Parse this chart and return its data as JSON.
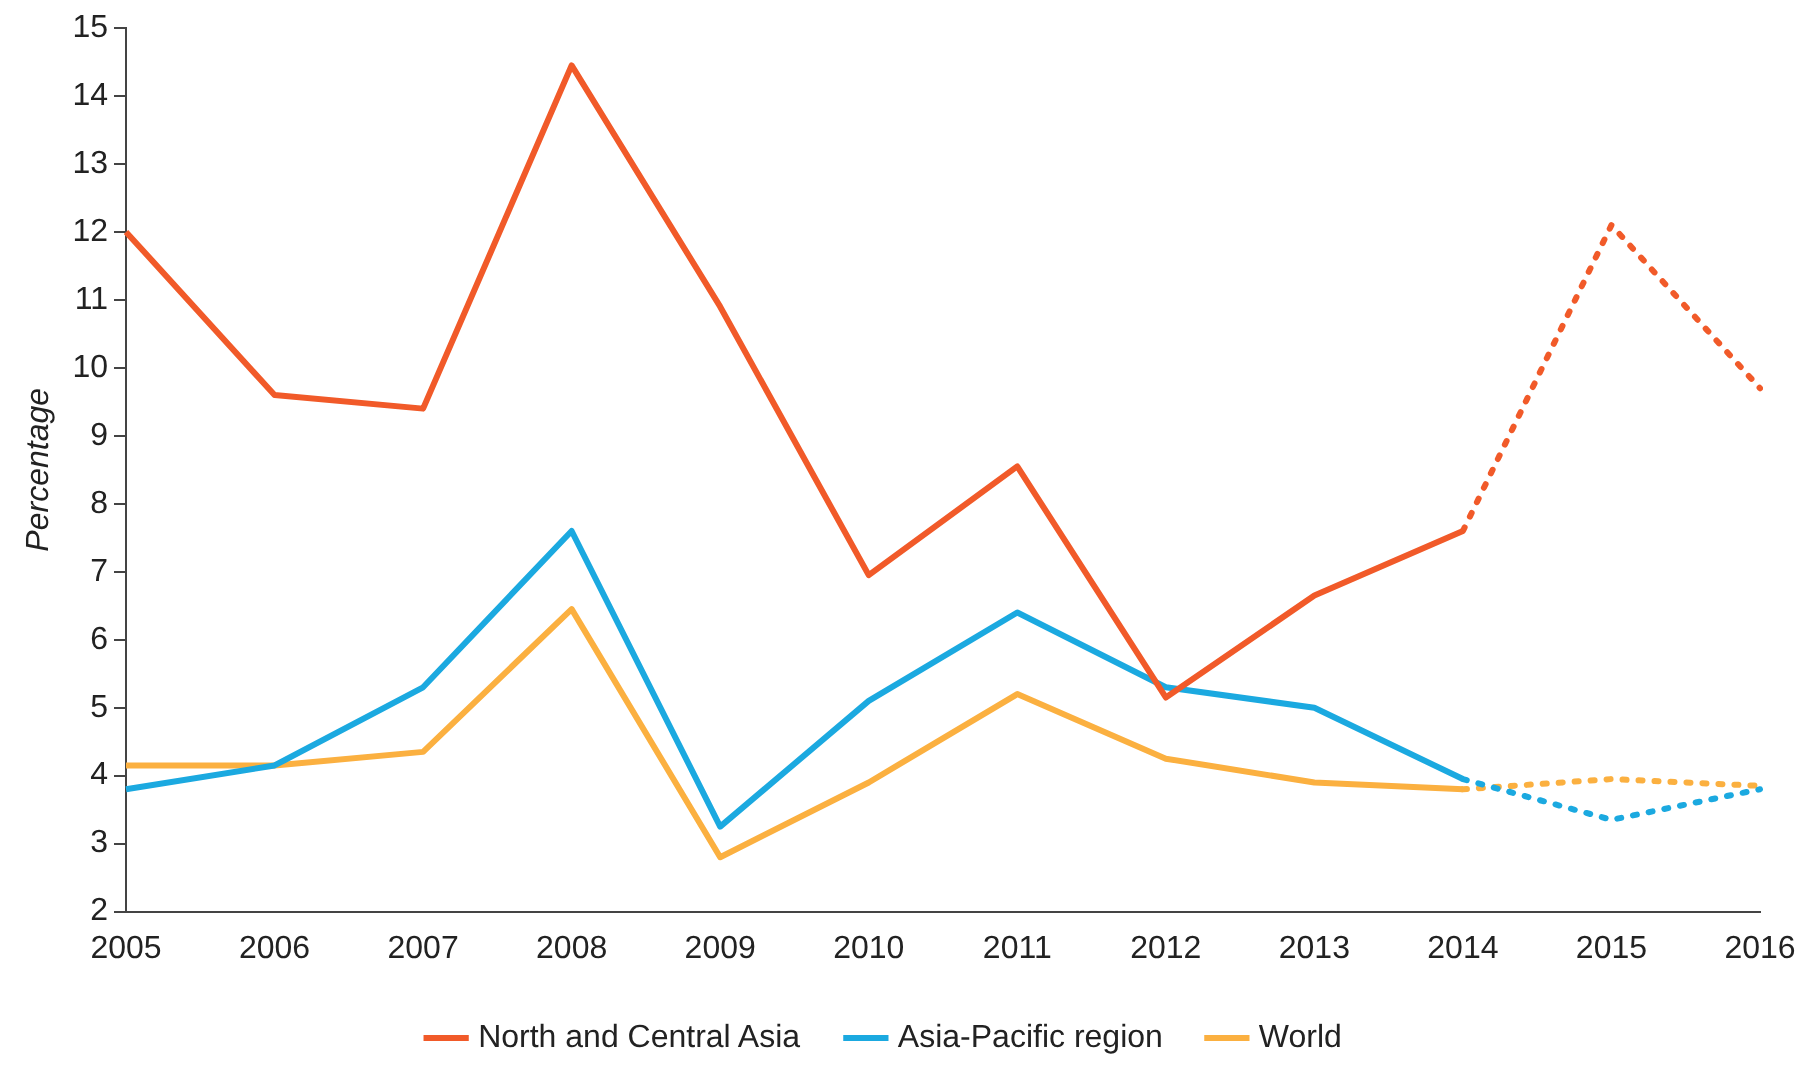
{
  "chart_data": {
    "type": "line",
    "ylabel": "Percentage",
    "categories": [
      "2005",
      "2006",
      "2007",
      "2008",
      "2009",
      "2010",
      "2011",
      "2012",
      "2013",
      "2014",
      "2015",
      "2016"
    ],
    "series": [
      {
        "name": "North and Central Asia",
        "color": "#f15a29",
        "values": [
          12.0,
          9.6,
          9.4,
          14.45,
          10.9,
          6.95,
          8.55,
          5.15,
          6.65,
          7.6,
          null,
          null
        ]
      },
      {
        "name": "Asia-Pacific region",
        "color": "#1ba9e0",
        "values": [
          3.8,
          4.15,
          5.3,
          7.6,
          3.25,
          5.1,
          6.4,
          5.3,
          5.0,
          3.95,
          null,
          null
        ]
      },
      {
        "name": "World",
        "color": "#fbb040",
        "values": [
          4.15,
          4.15,
          4.35,
          6.45,
          2.8,
          3.9,
          5.2,
          4.25,
          3.9,
          3.8,
          null,
          null
        ]
      },
      {
        "color": "#f15a29",
        "line_style": "dotted",
        "values": [
          null,
          null,
          null,
          null,
          null,
          null,
          null,
          null,
          null,
          7.6,
          12.1,
          9.7
        ]
      },
      {
        "color": "#1ba9e0",
        "line_style": "dotted",
        "values": [
          null,
          null,
          null,
          null,
          null,
          null,
          null,
          null,
          null,
          3.95,
          3.35,
          3.8
        ]
      },
      {
        "color": "#fbb040",
        "line_style": "dotted",
        "values": [
          null,
          null,
          null,
          null,
          null,
          null,
          null,
          null,
          null,
          3.8,
          3.95,
          3.85
        ]
      }
    ],
    "ylim": [
      2,
      15
    ],
    "yticks": [
      2,
      3,
      4,
      5,
      6,
      7,
      8,
      9,
      10,
      11,
      12,
      13,
      14,
      15
    ],
    "grid": false,
    "legend": "bottom",
    "marker": "none"
  }
}
